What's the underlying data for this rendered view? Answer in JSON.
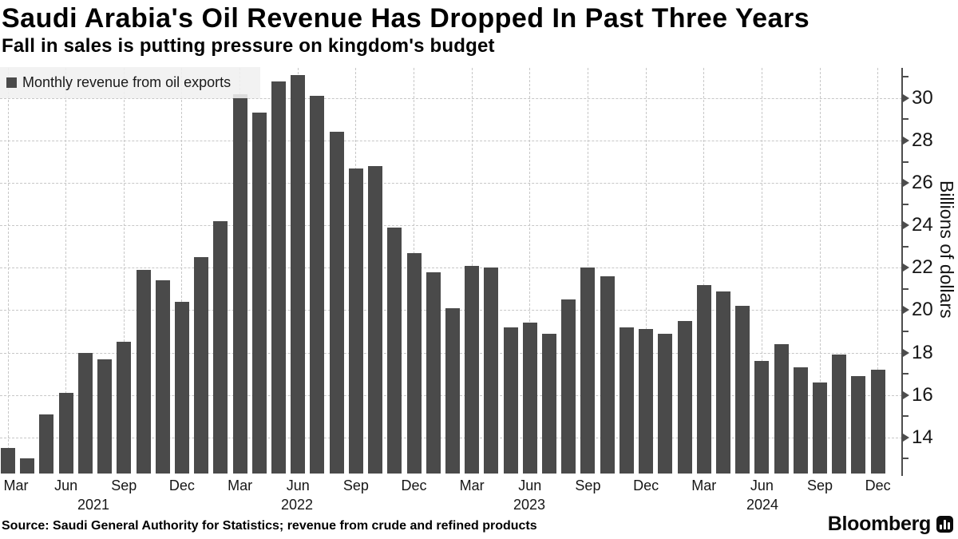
{
  "header": {
    "title": "Saudi Arabia's Oil Revenue Has Dropped In Past Three Years",
    "subtitle": "Fall in sales is putting pressure on kingdom's budget"
  },
  "legend": {
    "label": "Monthly revenue from oil exports",
    "swatch_color": "#4a4a4a"
  },
  "y_axis": {
    "label": "Billions of dollars",
    "ticks": [
      14,
      16,
      18,
      20,
      22,
      24,
      26,
      28,
      30
    ]
  },
  "x_axis": {
    "tick_months": [
      "Mar",
      "Jun",
      "Sep",
      "Dec"
    ],
    "years": [
      "2021",
      "2022",
      "2023",
      "2024"
    ]
  },
  "footer": {
    "source": "Source: Saudi General Authority for Statistics; revenue from crude and refined products",
    "brand": "Bloomberg"
  },
  "chart_data": {
    "type": "bar",
    "title": "Saudi Arabia's Oil Revenue Has Dropped In Past Three Years",
    "subtitle": "Fall in sales is putting pressure on kingdom's budget",
    "series_name": "Monthly revenue from oil exports",
    "bar_color": "#4a4a4a",
    "grid": true,
    "legend_position": "top-left",
    "xlabel": "",
    "ylabel": "Billions of dollars",
    "ylim": [
      12.3,
      31.4
    ],
    "yticks": [
      14,
      16,
      18,
      20,
      22,
      24,
      26,
      28,
      30
    ],
    "x": [
      "Mar 2021",
      "Apr 2021",
      "May 2021",
      "Jun 2021",
      "Jul 2021",
      "Aug 2021",
      "Sep 2021",
      "Oct 2021",
      "Nov 2021",
      "Dec 2021",
      "Jan 2022",
      "Feb 2022",
      "Mar 2022",
      "Apr 2022",
      "May 2022",
      "Jun 2022",
      "Jul 2022",
      "Aug 2022",
      "Sep 2022",
      "Oct 2022",
      "Nov 2022",
      "Dec 2022",
      "Jan 2023",
      "Feb 2023",
      "Mar 2023",
      "Apr 2023",
      "May 2023",
      "Jun 2023",
      "Jul 2023",
      "Aug 2023",
      "Sep 2023",
      "Oct 2023",
      "Nov 2023",
      "Dec 2023",
      "Jan 2024",
      "Feb 2024",
      "Mar 2024",
      "Apr 2024",
      "May 2024",
      "Jun 2024",
      "Jul 2024",
      "Aug 2024",
      "Sep 2024",
      "Oct 2024",
      "Nov 2024",
      "Dec 2024"
    ],
    "values": [
      13.5,
      13.0,
      15.1,
      16.1,
      18.0,
      17.7,
      18.5,
      21.9,
      21.4,
      20.4,
      22.5,
      24.2,
      30.2,
      29.3,
      30.8,
      31.1,
      30.1,
      28.4,
      26.7,
      26.8,
      23.9,
      22.7,
      21.8,
      20.1,
      22.1,
      22.0,
      19.2,
      19.4,
      18.9,
      20.5,
      22.0,
      21.6,
      19.2,
      19.1,
      18.9,
      19.5,
      21.2,
      20.9,
      20.2,
      17.6,
      18.4,
      17.3,
      16.6,
      17.9,
      16.9,
      17.2
    ]
  }
}
